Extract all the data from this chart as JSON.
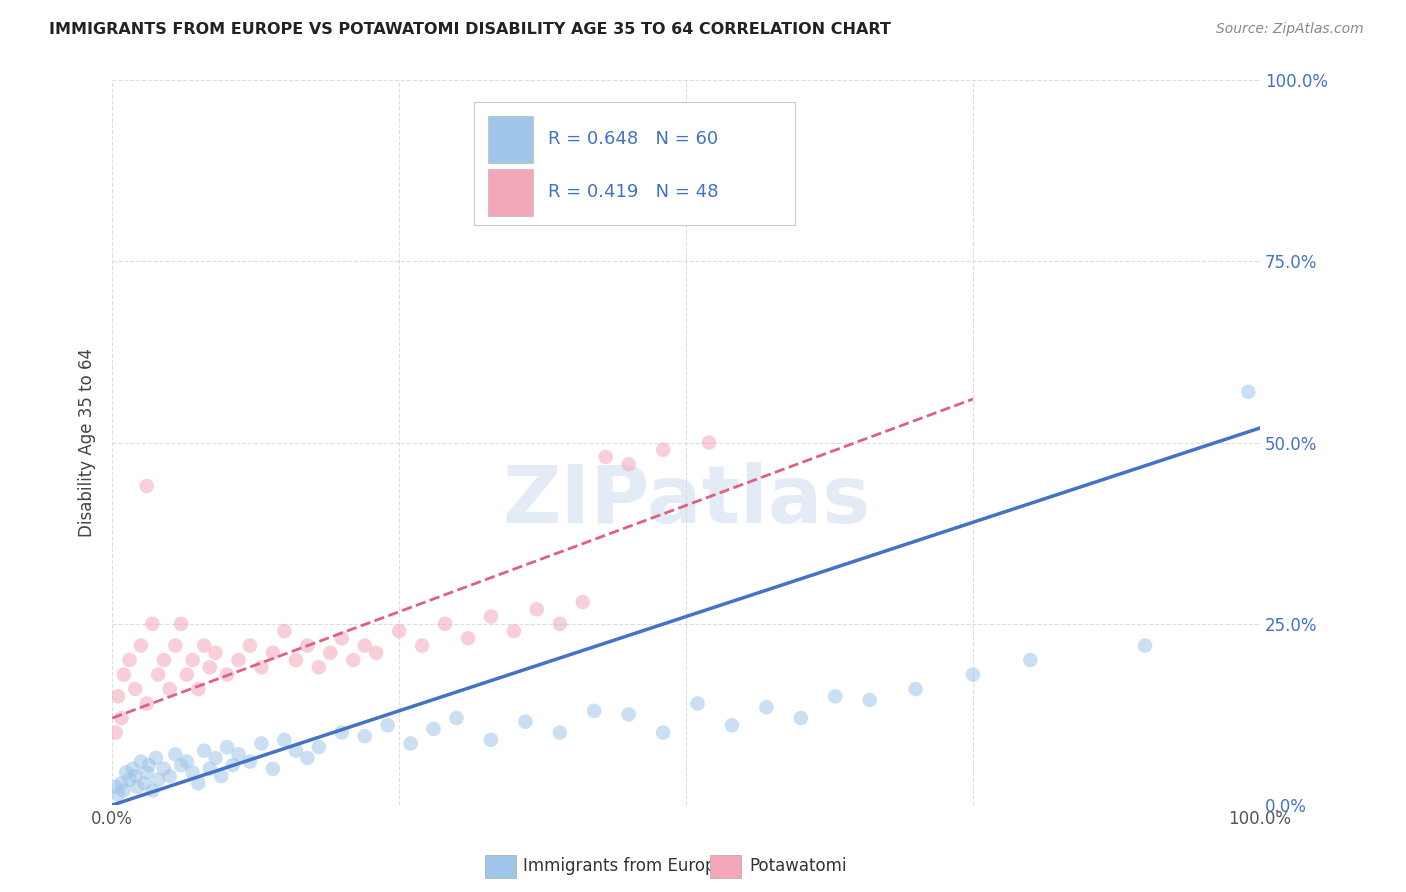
{
  "title": "IMMIGRANTS FROM EUROPE VS POTAWATOMI DISABILITY AGE 35 TO 64 CORRELATION CHART",
  "source": "Source: ZipAtlas.com",
  "ylabel": "Disability Age 35 to 64",
  "blue_R": 0.648,
  "blue_N": 60,
  "pink_R": 0.419,
  "pink_N": 48,
  "blue_color": "#9fc5e8",
  "pink_color": "#f4a7b9",
  "blue_line_color": "#4472c4",
  "pink_line_color": "#e06080",
  "legend_label_blue": "Immigrants from Europe",
  "legend_label_pink": "Potawatomi",
  "watermark": "ZIPatlas",
  "background_color": "#ffffff",
  "grid_color": "#dddddd",
  "xlim": [
    0,
    100
  ],
  "ylim": [
    0,
    100
  ],
  "blue_scatter_x": [
    0.3,
    0.5,
    0.8,
    1.0,
    1.2,
    1.5,
    1.8,
    2.0,
    2.2,
    2.5,
    2.8,
    3.0,
    3.2,
    3.5,
    3.8,
    4.0,
    4.5,
    5.0,
    5.5,
    6.0,
    6.5,
    7.0,
    7.5,
    8.0,
    8.5,
    9.0,
    9.5,
    10.0,
    10.5,
    11.0,
    12.0,
    13.0,
    14.0,
    15.0,
    16.0,
    17.0,
    18.0,
    20.0,
    22.0,
    24.0,
    26.0,
    28.0,
    30.0,
    33.0,
    36.0,
    39.0,
    42.0,
    45.0,
    48.0,
    51.0,
    54.0,
    57.0,
    60.0,
    63.0,
    66.0,
    70.0,
    75.0,
    80.0,
    90.0,
    99.0
  ],
  "blue_scatter_y": [
    2.5,
    1.5,
    3.0,
    2.0,
    4.5,
    3.5,
    5.0,
    4.0,
    2.5,
    6.0,
    3.0,
    4.5,
    5.5,
    2.0,
    6.5,
    3.5,
    5.0,
    4.0,
    7.0,
    5.5,
    6.0,
    4.5,
    3.0,
    7.5,
    5.0,
    6.5,
    4.0,
    8.0,
    5.5,
    7.0,
    6.0,
    8.5,
    5.0,
    9.0,
    7.5,
    6.5,
    8.0,
    10.0,
    9.5,
    11.0,
    8.5,
    10.5,
    12.0,
    9.0,
    11.5,
    10.0,
    13.0,
    12.5,
    10.0,
    14.0,
    11.0,
    13.5,
    12.0,
    15.0,
    14.5,
    16.0,
    18.0,
    20.0,
    22.0,
    57.0
  ],
  "pink_scatter_x": [
    0.3,
    0.5,
    0.8,
    1.0,
    1.5,
    2.0,
    2.5,
    3.0,
    3.0,
    3.5,
    4.0,
    4.5,
    5.0,
    5.5,
    6.0,
    6.5,
    7.0,
    7.5,
    8.0,
    8.5,
    9.0,
    10.0,
    11.0,
    12.0,
    13.0,
    14.0,
    15.0,
    16.0,
    17.0,
    18.0,
    19.0,
    20.0,
    21.0,
    22.0,
    23.0,
    25.0,
    27.0,
    29.0,
    31.0,
    33.0,
    35.0,
    37.0,
    39.0,
    41.0,
    43.0,
    45.0,
    48.0,
    52.0
  ],
  "pink_scatter_y": [
    10.0,
    15.0,
    12.0,
    18.0,
    20.0,
    16.0,
    22.0,
    14.0,
    44.0,
    25.0,
    18.0,
    20.0,
    16.0,
    22.0,
    25.0,
    18.0,
    20.0,
    16.0,
    22.0,
    19.0,
    21.0,
    18.0,
    20.0,
    22.0,
    19.0,
    21.0,
    24.0,
    20.0,
    22.0,
    19.0,
    21.0,
    23.0,
    20.0,
    22.0,
    21.0,
    24.0,
    22.0,
    25.0,
    23.0,
    26.0,
    24.0,
    27.0,
    25.0,
    28.0,
    48.0,
    47.0,
    49.0,
    50.0
  ],
  "blue_line_x": [
    0,
    100
  ],
  "blue_line_y": [
    0,
    52
  ],
  "pink_line_x": [
    0,
    75
  ],
  "pink_line_y": [
    12,
    56
  ]
}
